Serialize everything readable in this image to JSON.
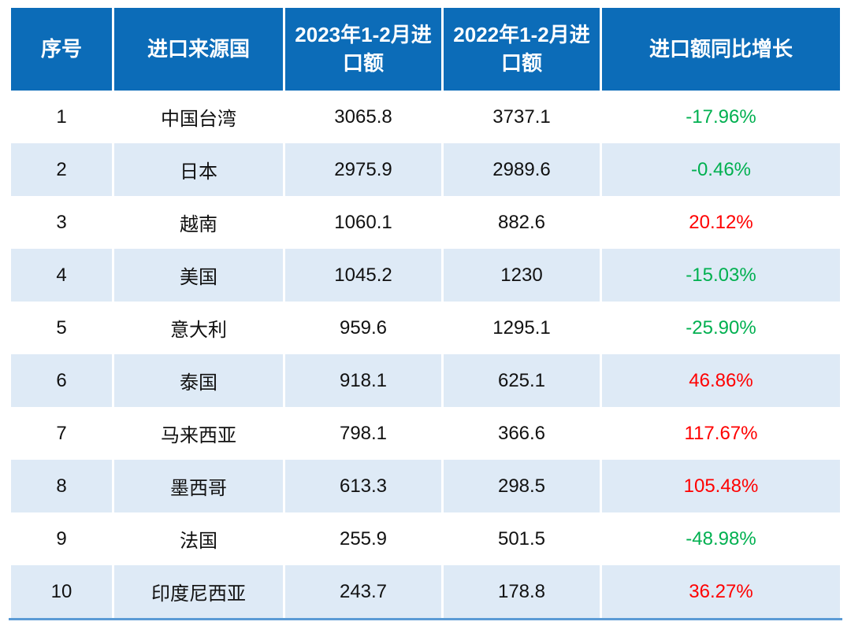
{
  "colors": {
    "header_bg": "#0C6CB8",
    "header_text": "#FFFFFF",
    "row_alt_bg": "#DEEAF6",
    "row_bg": "#FFFFFF",
    "growth_positive": "#FF0000",
    "growth_negative": "#00B050",
    "bottom_rule": "#5B9BD5"
  },
  "table": {
    "headers": {
      "rank": "序号",
      "country": "进口来源国",
      "y2023": "2023年1-2月进口额",
      "y2022": "2022年1-2月进口额",
      "growth": "进口额同比增长"
    },
    "rows": [
      {
        "no": "1",
        "country": "中国台湾",
        "y2023": "3065.8",
        "y2022": "3737.1",
        "growth": "-17.96%",
        "growth_class": "growth-down"
      },
      {
        "no": "2",
        "country": "日本",
        "y2023": "2975.9",
        "y2022": "2989.6",
        "growth": "-0.46%",
        "growth_class": "growth-down"
      },
      {
        "no": "3",
        "country": "越南",
        "y2023": "1060.1",
        "y2022": "882.6",
        "growth": "20.12%",
        "growth_class": "growth-up"
      },
      {
        "no": "4",
        "country": "美国",
        "y2023": "1045.2",
        "y2022": "1230",
        "growth": "-15.03%",
        "growth_class": "growth-down"
      },
      {
        "no": "5",
        "country": "意大利",
        "y2023": "959.6",
        "y2022": "1295.1",
        "growth": "-25.90%",
        "growth_class": "growth-down"
      },
      {
        "no": "6",
        "country": "泰国",
        "y2023": "918.1",
        "y2022": "625.1",
        "growth": "46.86%",
        "growth_class": "growth-up"
      },
      {
        "no": "7",
        "country": "马来西亚",
        "y2023": "798.1",
        "y2022": "366.6",
        "growth": "117.67%",
        "growth_class": "growth-up"
      },
      {
        "no": "8",
        "country": "墨西哥",
        "y2023": "613.3",
        "y2022": "298.5",
        "growth": "105.48%",
        "growth_class": "growth-up"
      },
      {
        "no": "9",
        "country": "法国",
        "y2023": "255.9",
        "y2022": "501.5",
        "growth": "-48.98%",
        "growth_class": "growth-down"
      },
      {
        "no": "10",
        "country": "印度尼西亚",
        "y2023": "243.7",
        "y2022": "178.8",
        "growth": "36.27%",
        "growth_class": "growth-up"
      }
    ]
  },
  "chart_data": {
    "type": "table",
    "columns": [
      "序号",
      "进口来源国",
      "2023年1-2月进口额",
      "2022年1-2月进口额",
      "进口额同比增长"
    ],
    "rows": [
      [
        "1",
        "中国台湾",
        3065.8,
        3737.1,
        "-17.96%"
      ],
      [
        "2",
        "日本",
        2975.9,
        2989.6,
        "-0.46%"
      ],
      [
        "3",
        "越南",
        1060.1,
        882.6,
        "20.12%"
      ],
      [
        "4",
        "美国",
        1045.2,
        1230,
        "-15.03%"
      ],
      [
        "5",
        "意大利",
        959.6,
        1295.1,
        "-25.90%"
      ],
      [
        "6",
        "泰国",
        918.1,
        625.1,
        "46.86%"
      ],
      [
        "7",
        "马来西亚",
        798.1,
        366.6,
        "117.67%"
      ],
      [
        "8",
        "墨西哥",
        613.3,
        298.5,
        "105.48%"
      ],
      [
        "9",
        "法国",
        255.9,
        501.5,
        "-48.98%"
      ],
      [
        "10",
        "印度尼西亚",
        243.7,
        178.8,
        "36.27%"
      ]
    ],
    "notes": "Negative growth rendered green (#00B050), positive growth rendered red (#FF0000)"
  }
}
